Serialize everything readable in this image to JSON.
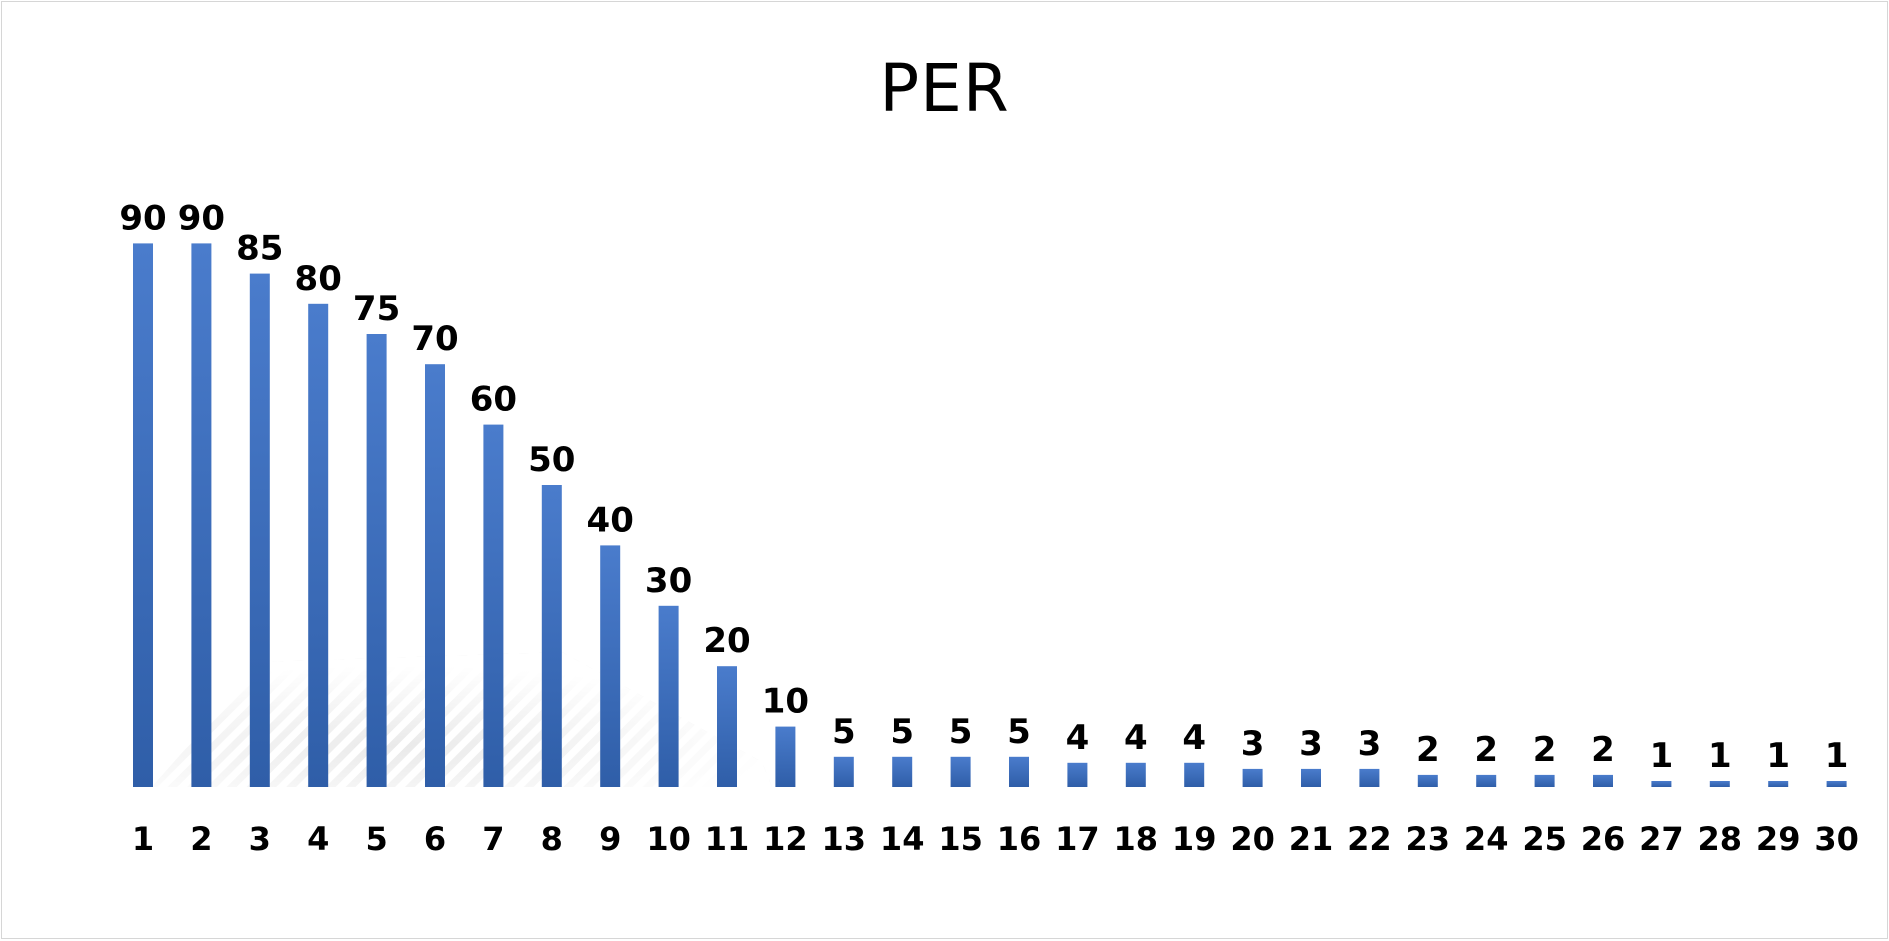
{
  "chart_data": {
    "type": "bar",
    "title": "PER",
    "xlabel": "",
    "ylabel": "",
    "categories": [
      "1",
      "2",
      "3",
      "4",
      "5",
      "6",
      "7",
      "8",
      "9",
      "10",
      "11",
      "12",
      "13",
      "14",
      "15",
      "16",
      "17",
      "18",
      "19",
      "20",
      "21",
      "22",
      "23",
      "24",
      "25",
      "26",
      "27",
      "28",
      "29",
      "30"
    ],
    "values": [
      90,
      90,
      85,
      80,
      75,
      70,
      60,
      50,
      40,
      30,
      20,
      10,
      5,
      5,
      5,
      5,
      4,
      4,
      4,
      3,
      3,
      3,
      2,
      2,
      2,
      2,
      1,
      1,
      1,
      1
    ],
    "data_labels": true,
    "grid": false,
    "legend": "none",
    "colors": {
      "bar_top": "#4a7ccc",
      "bar_bottom": "#2f5ea8",
      "shadow": "#cfcfcf",
      "border": "#d6d6d6"
    }
  }
}
